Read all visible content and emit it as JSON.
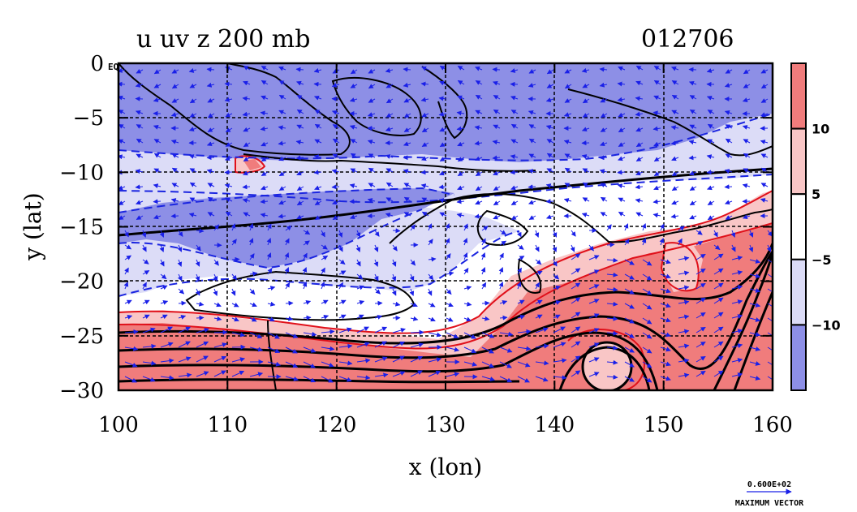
{
  "title": "u uv z 200 mb",
  "date_label": "012706",
  "x_axis_label": "x (lon)",
  "y_axis_label": "y (lat)",
  "eq_label": "EQ",
  "max_vector_value": "0.600E+02",
  "max_vector_label": "MAXIMUM VECTOR",
  "colors": {
    "strong_neg": "#8d8fe6",
    "weak_neg": "#dcdcf7",
    "weak_pos": "#f9c6c6",
    "strong_pos": "#f07c7c",
    "contour_neg": "#1b25e0",
    "contour_pos": "#e0101a",
    "coast": "#000000",
    "vector": "#1a20e8"
  },
  "chart_data": {
    "type": "heatmap",
    "xlim": [
      100,
      160
    ],
    "ylim": [
      -30,
      0
    ],
    "x_ticks": [
      "100",
      "110",
      "120",
      "130",
      "140",
      "150",
      "160"
    ],
    "y_ticks": [
      "0",
      "−5",
      "−10",
      "−15",
      "−20",
      "−25",
      "−30"
    ],
    "x_tick_values": [
      100,
      110,
      120,
      130,
      140,
      150,
      160
    ],
    "y_tick_values": [
      0,
      -5,
      -10,
      -15,
      -20,
      -25,
      -30
    ],
    "colorbar": {
      "labels": [
        "10",
        "5",
        "−5",
        "−10"
      ],
      "label_values": [
        10,
        5,
        -5,
        -10
      ],
      "bins": [
        {
          "range": [
            10,
            15
          ],
          "color": "#f07c7c"
        },
        {
          "range": [
            5,
            10
          ],
          "color": "#f9c6c6"
        },
        {
          "range": [
            -5,
            5
          ],
          "color": "#ffffff"
        },
        {
          "range": [
            -10,
            -5
          ],
          "color": "#dcdcf7"
        },
        {
          "range": [
            -15,
            -10
          ],
          "color": "#8d8fe6"
        }
      ]
    },
    "grid": true
  }
}
